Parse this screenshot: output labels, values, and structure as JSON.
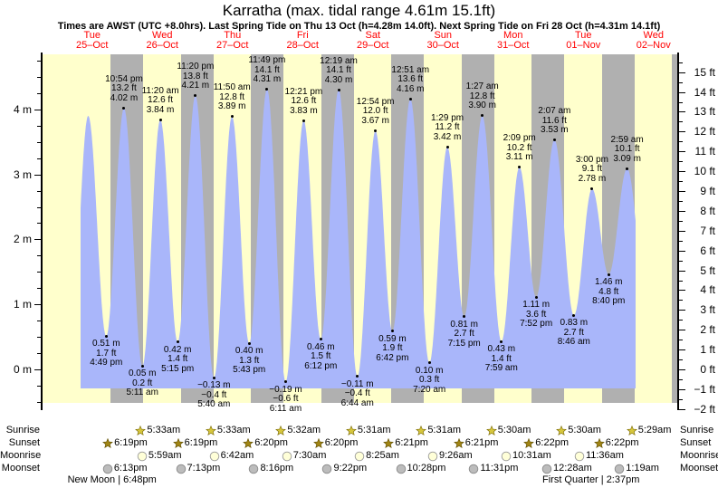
{
  "header": {
    "title": "Karratha (max. tidal range 4.61m 15.1ft)",
    "subtitle": "Times are AWST (UTC +8.0hrs). Last Spring Tide on Thu 13 Oct (h=4.28m 14.0ft). Next Spring Tide on Fri 28 Oct (h=4.31m 14.1ft)"
  },
  "days": [
    {
      "name": "Tue",
      "date": "25–Oct"
    },
    {
      "name": "Wed",
      "date": "26–Oct"
    },
    {
      "name": "Thu",
      "date": "27–Oct"
    },
    {
      "name": "Fri",
      "date": "28–Oct"
    },
    {
      "name": "Sat",
      "date": "29–Oct"
    },
    {
      "name": "Sun",
      "date": "30–Oct"
    },
    {
      "name": "Mon",
      "date": "31–Oct"
    },
    {
      "name": "Tue",
      "date": "01–Nov"
    },
    {
      "name": "Wed",
      "date": "02–Nov"
    }
  ],
  "chart_data": {
    "type": "area",
    "title": "Karratha (max. tidal range 4.61m 15.1ft)",
    "x_unit": "hours from Tue 25-Oct 00:00 AWST",
    "ylabel_left": "meters",
    "ylabel_right": "feet",
    "ylim_left_m": [
      -0.5,
      4.85
    ],
    "ylim_right_ft": [
      -2,
      15.9
    ],
    "grid": false,
    "legend": "none",
    "axis_left_labels": [
      "0 m",
      "1 m",
      "2 m",
      "3 m",
      "4 m"
    ],
    "axis_right_labels": [
      "−2 ft",
      "−1 ft",
      "0 ft",
      "1 ft",
      "2 ft",
      "3 ft",
      "4 ft",
      "5 ft",
      "6 ft",
      "7 ft",
      "8 ft",
      "9 ft",
      "10 ft",
      "11 ft",
      "12 ft",
      "13 ft",
      "14 ft",
      "15 ft"
    ],
    "extremes": [
      {
        "t": 16.817,
        "h": 0.51,
        "type": "low",
        "m_label": "0.51 m",
        "ft_label": "1.7 ft",
        "time_label": "4:49 pm"
      },
      {
        "t": 22.9,
        "h": 4.02,
        "type": "high",
        "m_label": "4.02 m",
        "ft_label": "13.2 ft",
        "time_label": "10:54 pm"
      },
      {
        "t": 29.183,
        "h": 0.05,
        "type": "low",
        "m_label": "0.05 m",
        "ft_label": "0.2 ft",
        "time_label": "5:11 am"
      },
      {
        "t": 35.333,
        "h": 3.84,
        "type": "high",
        "m_label": "3.84 m",
        "ft_label": "12.6 ft",
        "time_label": "11:20 am"
      },
      {
        "t": 41.25,
        "h": 0.42,
        "type": "low",
        "m_label": "0.42 m",
        "ft_label": "1.4 ft",
        "time_label": "5:15 pm"
      },
      {
        "t": 47.333,
        "h": 4.21,
        "type": "high",
        "m_label": "4.21 m",
        "ft_label": "13.8 ft",
        "time_label": "11:20 pm"
      },
      {
        "t": 53.667,
        "h": -0.13,
        "type": "low",
        "m_label": "−0.13 m",
        "ft_label": "−0.4 ft",
        "time_label": "5:40 am"
      },
      {
        "t": 59.833,
        "h": 3.89,
        "type": "high",
        "m_label": "3.89 m",
        "ft_label": "12.8 ft",
        "time_label": "11:50 am"
      },
      {
        "t": 65.717,
        "h": 0.4,
        "type": "low",
        "m_label": "0.40 m",
        "ft_label": "1.3 ft",
        "time_label": "5:43 pm"
      },
      {
        "t": 71.817,
        "h": 4.31,
        "type": "high",
        "m_label": "4.31 m",
        "ft_label": "14.1 ft",
        "time_label": "11:49 pm"
      },
      {
        "t": 78.183,
        "h": -0.19,
        "type": "low",
        "m_label": "−0.19 m",
        "ft_label": "−0.6 ft",
        "time_label": "6:11 am"
      },
      {
        "t": 84.35,
        "h": 3.83,
        "type": "high",
        "m_label": "3.83 m",
        "ft_label": "12.6 ft",
        "time_label": "12:21 pm"
      },
      {
        "t": 90.2,
        "h": 0.46,
        "type": "low",
        "m_label": "0.46 m",
        "ft_label": "1.5 ft",
        "time_label": "6:12 pm"
      },
      {
        "t": 96.317,
        "h": 4.3,
        "type": "high",
        "m_label": "4.30 m",
        "ft_label": "14.1 ft",
        "time_label": "12:19 am"
      },
      {
        "t": 102.733,
        "h": -0.11,
        "type": "low",
        "m_label": "−0.11 m",
        "ft_label": "−0.4 ft",
        "time_label": "6:44 am"
      },
      {
        "t": 108.9,
        "h": 3.67,
        "type": "high",
        "m_label": "3.67 m",
        "ft_label": "12.0 ft",
        "time_label": "12:54 pm"
      },
      {
        "t": 114.7,
        "h": 0.59,
        "type": "low",
        "m_label": "0.59 m",
        "ft_label": "1.9 ft",
        "time_label": "6:42 pm"
      },
      {
        "t": 120.85,
        "h": 4.16,
        "type": "high",
        "m_label": "4.16 m",
        "ft_label": "13.6 ft",
        "time_label": "12:51 am"
      },
      {
        "t": 127.333,
        "h": 0.1,
        "type": "low",
        "m_label": "0.10 m",
        "ft_label": "0.3 ft",
        "time_label": "7:20 am"
      },
      {
        "t": 133.483,
        "h": 3.42,
        "type": "high",
        "m_label": "3.42 m",
        "ft_label": "11.2 ft",
        "time_label": "1:29 pm"
      },
      {
        "t": 139.25,
        "h": 0.81,
        "type": "low",
        "m_label": "0.81 m",
        "ft_label": "2.7 ft",
        "time_label": "7:15 pm"
      },
      {
        "t": 145.45,
        "h": 3.9,
        "type": "high",
        "m_label": "3.90 m",
        "ft_label": "12.8 ft",
        "time_label": "1:27 am"
      },
      {
        "t": 151.983,
        "h": 0.43,
        "type": "low",
        "m_label": "0.43 m",
        "ft_label": "1.4 ft",
        "time_label": "7:59 am"
      },
      {
        "t": 158.15,
        "h": 3.11,
        "type": "high",
        "m_label": "3.11 m",
        "ft_label": "10.2 ft",
        "time_label": "2:09 pm"
      },
      {
        "t": 163.867,
        "h": 1.11,
        "type": "low",
        "m_label": "1.11 m",
        "ft_label": "3.6 ft",
        "time_label": "7:52 pm"
      },
      {
        "t": 170.117,
        "h": 3.53,
        "type": "high",
        "m_label": "3.53 m",
        "ft_label": "11.6 ft",
        "time_label": "2:07 am"
      },
      {
        "t": 176.767,
        "h": 0.83,
        "type": "low",
        "m_label": "0.83 m",
        "ft_label": "2.7 ft",
        "time_label": "8:46 am"
      },
      {
        "t": 183.0,
        "h": 2.78,
        "type": "high",
        "m_label": "2.78 m",
        "ft_label": "9.1 ft",
        "time_label": "3:00 pm"
      },
      {
        "t": 188.667,
        "h": 1.46,
        "type": "low",
        "m_label": "1.46 m",
        "ft_label": "4.8 ft",
        "time_label": "8:40 pm"
      },
      {
        "t": 194.983,
        "h": 3.09,
        "type": "high",
        "m_label": "3.09 m",
        "ft_label": "10.1 ft",
        "time_label": "2:59 am"
      }
    ],
    "curve_padding_pre": [
      {
        "t": 4.417,
        "h": 0.1
      },
      {
        "t": 10.667,
        "h": 3.9
      }
    ],
    "curve_padding_post": [
      {
        "t": 201.5,
        "h": 1.15
      }
    ],
    "night_bands_t": [
      [
        18.317,
        29.55
      ],
      [
        42.317,
        53.55
      ],
      [
        66.333,
        77.533
      ],
      [
        90.333,
        101.517
      ],
      [
        114.35,
        125.517
      ],
      [
        138.35,
        149.5
      ],
      [
        162.367,
        173.5
      ],
      [
        186.367,
        197.483
      ],
      [
        210.383,
        214.0
      ]
    ]
  },
  "almanac": {
    "rows": [
      {
        "label": "Sunrise",
        "icon": "sunrise-star",
        "events": [
          {
            "t": 29.55,
            "time": "5:33am"
          },
          {
            "t": 53.55,
            "time": "5:33am"
          },
          {
            "t": 77.533,
            "time": "5:32am"
          },
          {
            "t": 101.517,
            "time": "5:31am"
          },
          {
            "t": 125.517,
            "time": "5:31am"
          },
          {
            "t": 149.5,
            "time": "5:30am"
          },
          {
            "t": 173.5,
            "time": "5:30am"
          },
          {
            "t": 197.483,
            "time": "5:29am"
          }
        ]
      },
      {
        "label": "Sunset",
        "icon": "sunset-star",
        "events": [
          {
            "t": 18.317,
            "time": "6:19pm"
          },
          {
            "t": 42.317,
            "time": "6:19pm"
          },
          {
            "t": 66.333,
            "time": "6:20pm"
          },
          {
            "t": 90.333,
            "time": "6:20pm"
          },
          {
            "t": 114.35,
            "time": "6:21pm"
          },
          {
            "t": 138.35,
            "time": "6:21pm"
          },
          {
            "t": 162.367,
            "time": "6:22pm"
          },
          {
            "t": 186.367,
            "time": "6:22pm"
          }
        ]
      },
      {
        "label": "Moonrise",
        "icon": "moonrise-circle",
        "events": [
          {
            "t": 29.983,
            "time": "5:59am"
          },
          {
            "t": 54.7,
            "time": "6:42am"
          },
          {
            "t": 79.5,
            "time": "7:30am"
          },
          {
            "t": 104.417,
            "time": "8:25am"
          },
          {
            "t": 129.433,
            "time": "9:26am"
          },
          {
            "t": 154.517,
            "time": "10:31am"
          },
          {
            "t": 179.6,
            "time": "11:36am"
          }
        ]
      },
      {
        "label": "Moonset",
        "icon": "moonset-circle",
        "events": [
          {
            "t": 18.217,
            "time": "6:13pm"
          },
          {
            "t": 43.217,
            "time": "7:13pm"
          },
          {
            "t": 68.267,
            "time": "8:16pm"
          },
          {
            "t": 93.367,
            "time": "9:22pm"
          },
          {
            "t": 118.467,
            "time": "10:28pm"
          },
          {
            "t": 143.517,
            "time": "11:31pm"
          },
          {
            "t": 168.467,
            "time": "12:28am"
          },
          {
            "t": 193.317,
            "time": "1:19am"
          }
        ]
      }
    ],
    "phases": [
      {
        "t": 18.8,
        "label": "New Moon | 6:48pm"
      },
      {
        "t": 182.617,
        "label": "First Quarter | 2:37pm"
      }
    ]
  },
  "colors": {
    "day_band": "#ffffcc",
    "night_band": "#b0b0b0",
    "tide_area": "#a9b6fa",
    "day_label": "#ff0000",
    "sunrise_star_fill": "#d6c63c",
    "sunrise_star_stroke": "#7a6a08",
    "sunset_star_fill": "#a08414",
    "sunset_star_stroke": "#5f4e00",
    "moonrise_fill": "#ffffd8",
    "moonrise_stroke": "#999999",
    "moonset_fill": "#bcbcbc",
    "moonset_stroke": "#888888"
  }
}
